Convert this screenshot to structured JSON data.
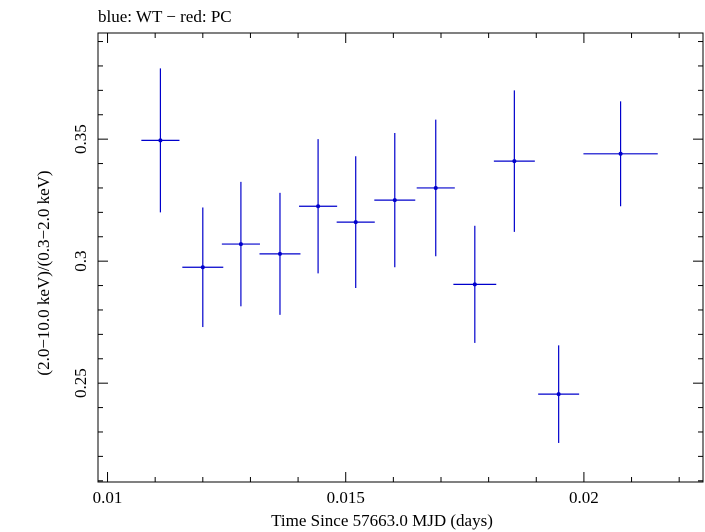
{
  "chart_data": {
    "type": "scatter",
    "title": "blue: WT − red: PC",
    "xlabel": "Time Since 57663.0 MJD (days)",
    "ylabel": "(2.0−10.0 keV)/(0.3−2.0 keV)",
    "xlim": [
      0.0098,
      0.0225
    ],
    "ylim": [
      0.2095,
      0.3935
    ],
    "x_major_ticks": [
      0.01,
      0.015,
      0.02
    ],
    "x_tick_labels": [
      "0.01",
      "0.015",
      "0.02"
    ],
    "x_minor_step": 0.001,
    "y_major_ticks": [
      0.25,
      0.3,
      0.35
    ],
    "y_tick_labels": [
      "0.25",
      "0.3",
      "0.35"
    ],
    "y_minor_step": 0.01,
    "grid": false,
    "series": [
      {
        "color": "#0000cc",
        "points": [
          {
            "x": 0.01111,
            "xerr": 0.0004,
            "y": 0.3495,
            "yerr_low": 0.0295,
            "yerr_high": 0.0295
          },
          {
            "x": 0.012,
            "xerr": 0.00043,
            "y": 0.2975,
            "yerr_low": 0.0245,
            "yerr_high": 0.0245
          },
          {
            "x": 0.0128,
            "xerr": 0.0004,
            "y": 0.307,
            "yerr_low": 0.0255,
            "yerr_high": 0.0255
          },
          {
            "x": 0.01362,
            "xerr": 0.00043,
            "y": 0.303,
            "yerr_low": 0.025,
            "yerr_high": 0.025
          },
          {
            "x": 0.01442,
            "xerr": 0.0004,
            "y": 0.3225,
            "yerr_low": 0.0275,
            "yerr_high": 0.0275
          },
          {
            "x": 0.01521,
            "xerr": 0.0004,
            "y": 0.316,
            "yerr_low": 0.027,
            "yerr_high": 0.027
          },
          {
            "x": 0.01603,
            "xerr": 0.00043,
            "y": 0.325,
            "yerr_low": 0.0275,
            "yerr_high": 0.0275
          },
          {
            "x": 0.01689,
            "xerr": 0.0004,
            "y": 0.33,
            "yerr_low": 0.028,
            "yerr_high": 0.028
          },
          {
            "x": 0.01771,
            "xerr": 0.00045,
            "y": 0.2905,
            "yerr_low": 0.024,
            "yerr_high": 0.024
          },
          {
            "x": 0.01854,
            "xerr": 0.00043,
            "y": 0.341,
            "yerr_low": 0.029,
            "yerr_high": 0.029
          },
          {
            "x": 0.01947,
            "xerr": 0.00043,
            "y": 0.2455,
            "yerr_low": 0.02,
            "yerr_high": 0.02
          },
          {
            "x": 0.02077,
            "xerr": 0.00078,
            "y": 0.344,
            "yerr_low": 0.0215,
            "yerr_high": 0.0215
          }
        ]
      }
    ]
  }
}
